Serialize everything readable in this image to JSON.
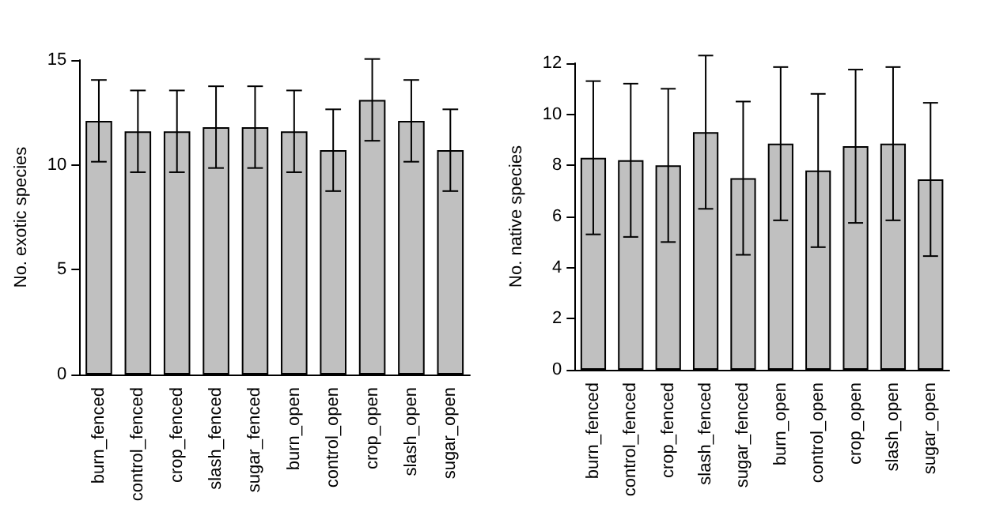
{
  "chart_data": [
    {
      "type": "bar",
      "ylabel": "No. exotic species",
      "categories": [
        "burn_fenced",
        "control_fenced",
        "crop_fenced",
        "slash_fenced",
        "sugar_fenced",
        "burn_open",
        "control_open",
        "crop_open",
        "slash_open",
        "sugar_open"
      ],
      "values": [
        12.1,
        11.6,
        11.6,
        11.8,
        11.8,
        11.6,
        10.7,
        13.1,
        12.1,
        10.7
      ],
      "errors": [
        1.95,
        1.95,
        1.95,
        1.95,
        1.95,
        1.95,
        1.95,
        1.95,
        1.95,
        1.95
      ],
      "color": "#c0c0c0",
      "ylim": [
        0,
        15
      ],
      "yticks": [
        0,
        5,
        10,
        15
      ]
    },
    {
      "type": "bar",
      "ylabel": "No. native species",
      "categories": [
        "burn_fenced",
        "control_fenced",
        "crop_fenced",
        "slash_fenced",
        "sugar_fenced",
        "burn_open",
        "control_open",
        "crop_open",
        "slash_open",
        "sugar_open"
      ],
      "values": [
        8.3,
        8.2,
        8.0,
        9.3,
        7.5,
        8.85,
        7.8,
        8.75,
        8.85,
        7.45
      ],
      "errors": [
        3,
        3,
        3,
        3,
        3,
        3,
        3,
        3,
        3,
        3
      ],
      "color": "#c0c0c0",
      "ylim": [
        0,
        12
      ],
      "yticks": [
        0,
        2,
        4,
        6,
        8,
        10,
        12
      ]
    }
  ]
}
